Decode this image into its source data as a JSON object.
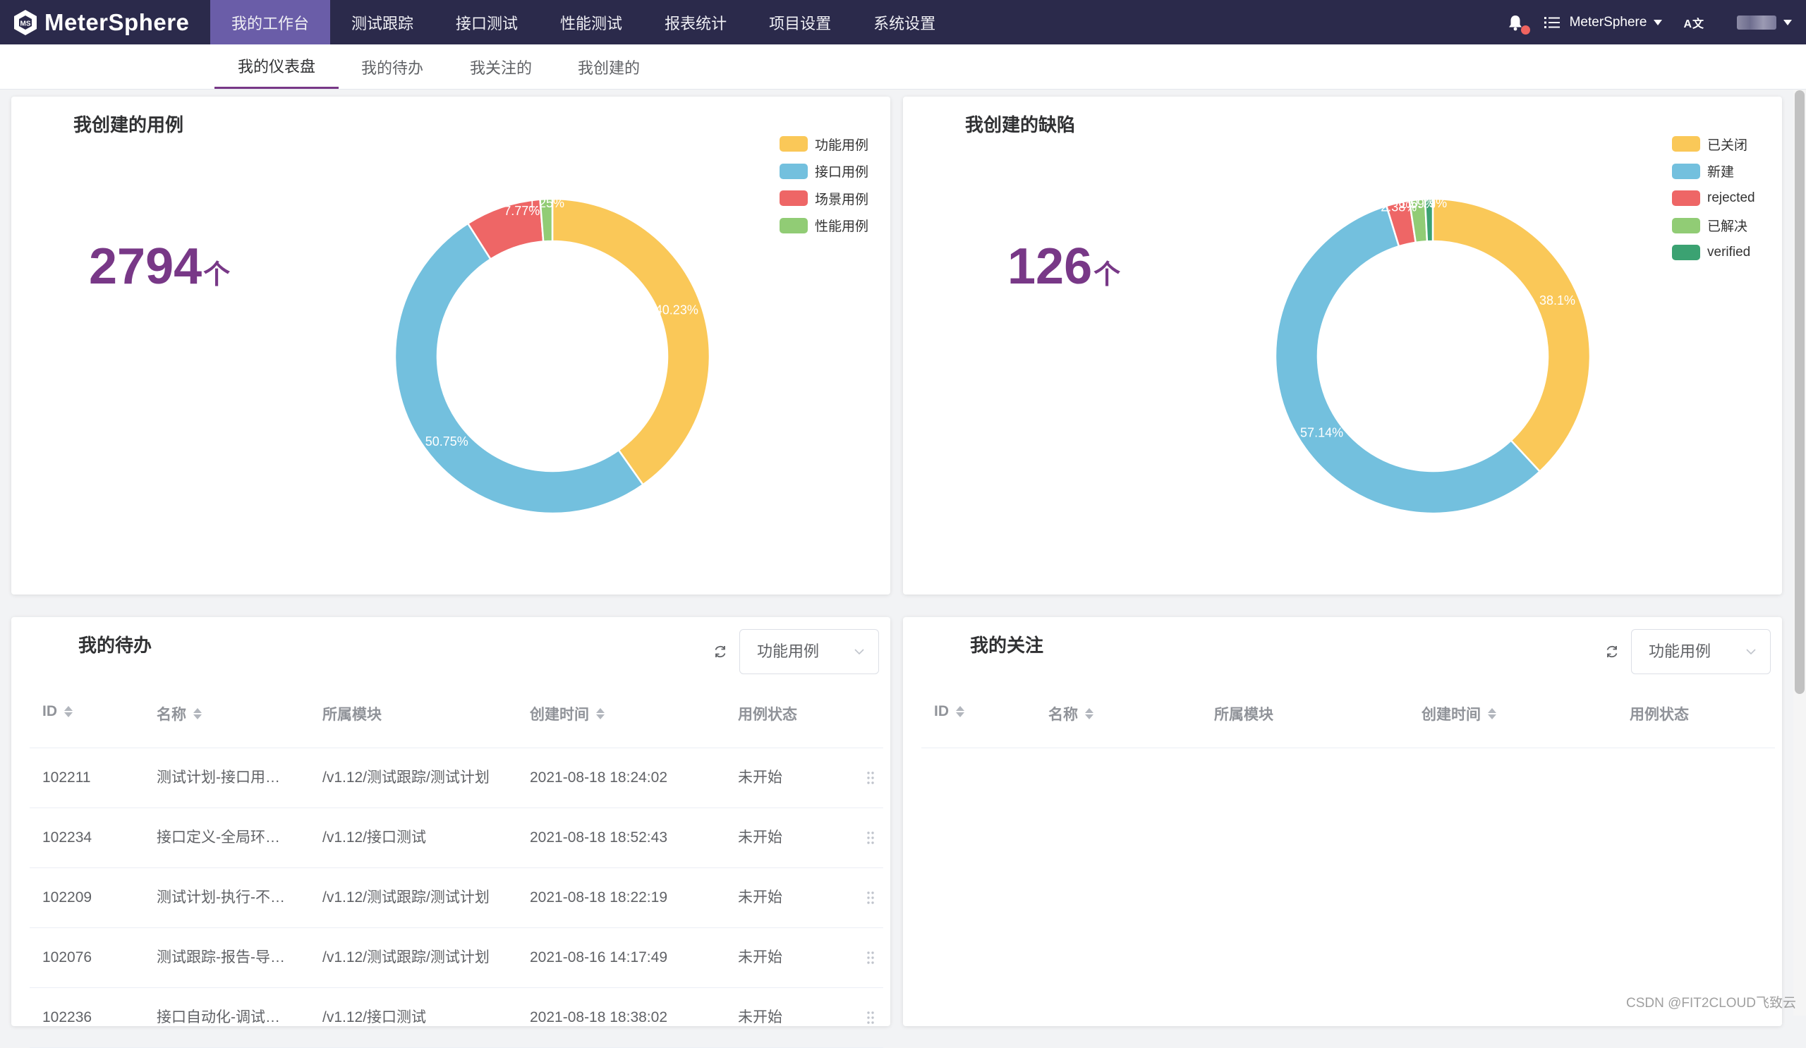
{
  "app": {
    "name": "MeterSphere"
  },
  "topnav": {
    "items": [
      {
        "label": "我的工作台",
        "active": true
      },
      {
        "label": "测试跟踪",
        "active": false
      },
      {
        "label": "接口测试",
        "active": false
      },
      {
        "label": "性能测试",
        "active": false
      },
      {
        "label": "报表统计",
        "active": false
      },
      {
        "label": "项目设置",
        "active": false
      },
      {
        "label": "系统设置",
        "active": false
      }
    ],
    "project_name": "MeterSphere",
    "lang_label": "A文"
  },
  "subtabs": [
    {
      "label": "我的仪表盘",
      "active": true
    },
    {
      "label": "我的待办",
      "active": false
    },
    {
      "label": "我关注的",
      "active": false
    },
    {
      "label": "我创建的",
      "active": false
    }
  ],
  "case_card": {
    "title": "我创建的用例",
    "count": "2794",
    "unit": "个"
  },
  "bug_card": {
    "title": "我创建的缺陷",
    "count": "126",
    "unit": "个"
  },
  "todo_card": {
    "title": "我的待办",
    "select_value": "功能用例",
    "headers": [
      "ID",
      "名称",
      "所属模块",
      "创建时间",
      "用例状态"
    ],
    "rows": [
      {
        "id": "102211",
        "name": "测试计划-接口用…",
        "module": "/v1.12/测试跟踪/测试计划",
        "created": "2021-08-18 18:24:02",
        "status": "未开始"
      },
      {
        "id": "102234",
        "name": "接口定义-全局环…",
        "module": "/v1.12/接口测试",
        "created": "2021-08-18 18:52:43",
        "status": "未开始"
      },
      {
        "id": "102209",
        "name": "测试计划-执行-不…",
        "module": "/v1.12/测试跟踪/测试计划",
        "created": "2021-08-18 18:22:19",
        "status": "未开始"
      },
      {
        "id": "102076",
        "name": "测试跟踪-报告-导…",
        "module": "/v1.12/测试跟踪/测试计划",
        "created": "2021-08-16 14:17:49",
        "status": "未开始"
      },
      {
        "id": "102236",
        "name": "接口自动化-调试…",
        "module": "/v1.12/接口测试",
        "created": "2021-08-18 18:38:02",
        "status": "未开始"
      }
    ]
  },
  "follow_card": {
    "title": "我的关注",
    "select_value": "功能用例",
    "headers": [
      "ID",
      "名称",
      "所属模块",
      "创建时间",
      "用例状态"
    ]
  },
  "watermark": "CSDN @FIT2CLOUD飞致云",
  "chart_data": [
    {
      "type": "pie",
      "title": "我创建的用例",
      "donut": true,
      "legend_position": "top-right",
      "categories": [
        "功能用例",
        "接口用例",
        "场景用例",
        "性能用例"
      ],
      "values": [
        40.23,
        50.75,
        7.77,
        1.25
      ],
      "labels": [
        "40.23%",
        "50.75%",
        "7.77%",
        "1.25%"
      ],
      "colors": [
        "#fac858",
        "#73c0de",
        "#ee6666",
        "#91cc75"
      ]
    },
    {
      "type": "pie",
      "title": "我创建的缺陷",
      "donut": true,
      "legend_position": "top-right",
      "categories": [
        "已关闭",
        "新建",
        "rejected",
        "已解决",
        "verified"
      ],
      "values": [
        38.1,
        57.14,
        2.38,
        1.59,
        0.79
      ],
      "labels": [
        "38.1%",
        "57.14%",
        "2.38%",
        "1.59%",
        "0.79%"
      ],
      "colors": [
        "#fac858",
        "#73c0de",
        "#ee6666",
        "#91cc75",
        "#3ba272"
      ]
    }
  ]
}
